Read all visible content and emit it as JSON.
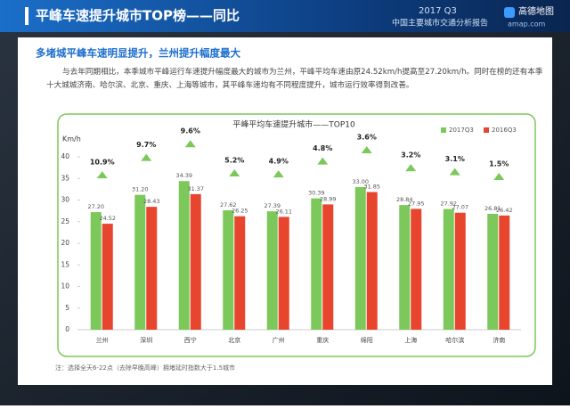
{
  "header": {
    "title": "平峰车速提升城市TOP榜——同比",
    "period": "2017 Q3",
    "report": "中国主要城市交通分析报告",
    "logo": "高德地图",
    "site": "amap.com"
  },
  "headline": "多堵城平峰车速明显提升，兰州提升幅度最大",
  "paragraph": "与去年同期相比，本季城市平峰运行车速提升幅度最大的城市为兰州，平峰平均车速由原24.52km/h提高至27.20km/h。同时在榜的还有本季十大城城济南、哈尔滨、北京、重庆、上海等城市，其平峰车速均有不同程度提升，城市运行效率得到改善。",
  "note": "注：选择全天6-22点（去除早晚高峰）拥堵延时指数大于1.5城市",
  "chart_data": {
    "type": "bar",
    "title": "平峰平均车速提升城市——TOP10",
    "y_label": "Km/h",
    "categories": [
      "兰州",
      "深圳",
      "西宁",
      "北京",
      "广州",
      "重庆",
      "绵阳",
      "上海",
      "哈尔滨",
      "济南"
    ],
    "series": [
      {
        "name": "2017Q3",
        "color": "#7cc85a",
        "values": [
          27.2,
          31.2,
          34.39,
          27.62,
          27.39,
          30.39,
          33,
          28.84,
          27.92,
          26.81
        ],
        "value_labels": [
          "27.20",
          "31.20",
          "34.39",
          "27.62",
          "27.39",
          "30.39",
          "33.00",
          "28.84",
          "27.92",
          "26.81"
        ]
      },
      {
        "name": "2016Q3",
        "color": "#e8452f",
        "values": [
          24.52,
          28.43,
          31.37,
          26.25,
          26.11,
          28.99,
          31.85,
          27.95,
          27.07,
          26.42
        ],
        "value_labels": [
          "24.52",
          "28.43",
          "31.37",
          "26.25",
          "26.11",
          "28.99",
          "31.85",
          "27.95",
          "27.07",
          "26.42"
        ]
      }
    ],
    "annotations": [
      "10.9%",
      "9.7%",
      "9.6%",
      "5.2%",
      "4.9%",
      "4.8%",
      "3.6%",
      "3.2%",
      "3.1%",
      "1.5%"
    ],
    "ylim": [
      0,
      40
    ],
    "yticks": [
      0,
      5,
      10,
      15,
      20,
      25,
      30,
      35,
      40
    ],
    "legend": "top-right"
  }
}
